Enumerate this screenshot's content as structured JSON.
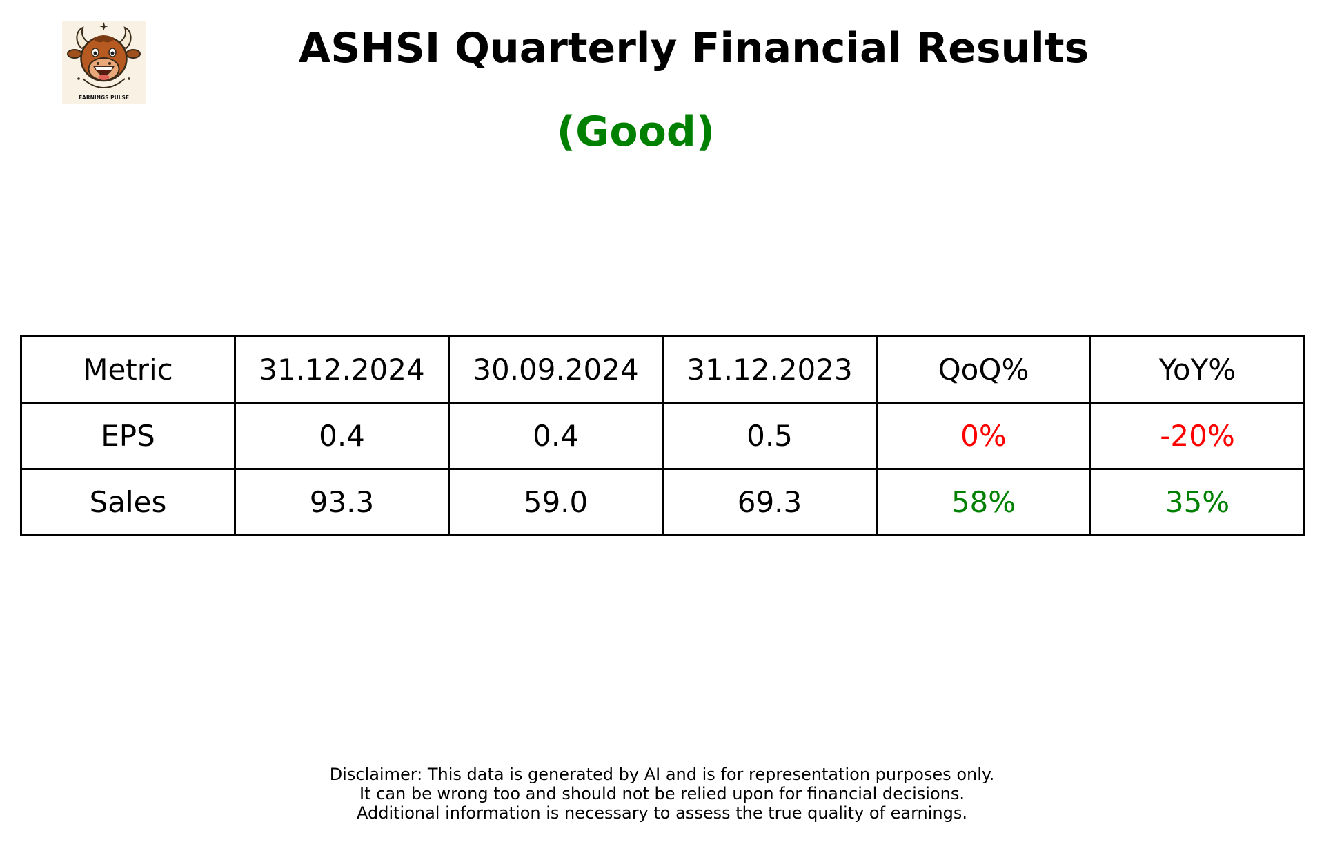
{
  "header": {
    "title": "ASHSI Quarterly Financial Results",
    "rating": "(Good)",
    "rating_color": "#008000"
  },
  "logo": {
    "icon": "bull-mascot-icon",
    "text": "EARNINGS PULSE",
    "background": "#f8f1e4"
  },
  "colors": {
    "positive": "#008000",
    "negative": "#ff0000"
  },
  "table": {
    "columns": [
      "Metric",
      "31.12.2024",
      "30.09.2024",
      "31.12.2023",
      "QoQ%",
      "YoY%"
    ],
    "rows": [
      {
        "cells": [
          "EPS",
          "0.4",
          "0.4",
          "0.5",
          "0%",
          "-20%"
        ],
        "colors": [
          "#000000",
          "#000000",
          "#000000",
          "#000000",
          "#ff0000",
          "#ff0000"
        ]
      },
      {
        "cells": [
          "Sales",
          "93.3",
          "59.0",
          "69.3",
          "58%",
          "35%"
        ],
        "colors": [
          "#000000",
          "#000000",
          "#000000",
          "#000000",
          "#008000",
          "#008000"
        ]
      }
    ]
  },
  "disclaimer": {
    "lines": [
      "Disclaimer: This data is generated by AI and is for representation purposes only.",
      "It can be wrong too and should not be relied upon for financial decisions.",
      "Additional information is necessary to assess the true quality of earnings."
    ]
  }
}
